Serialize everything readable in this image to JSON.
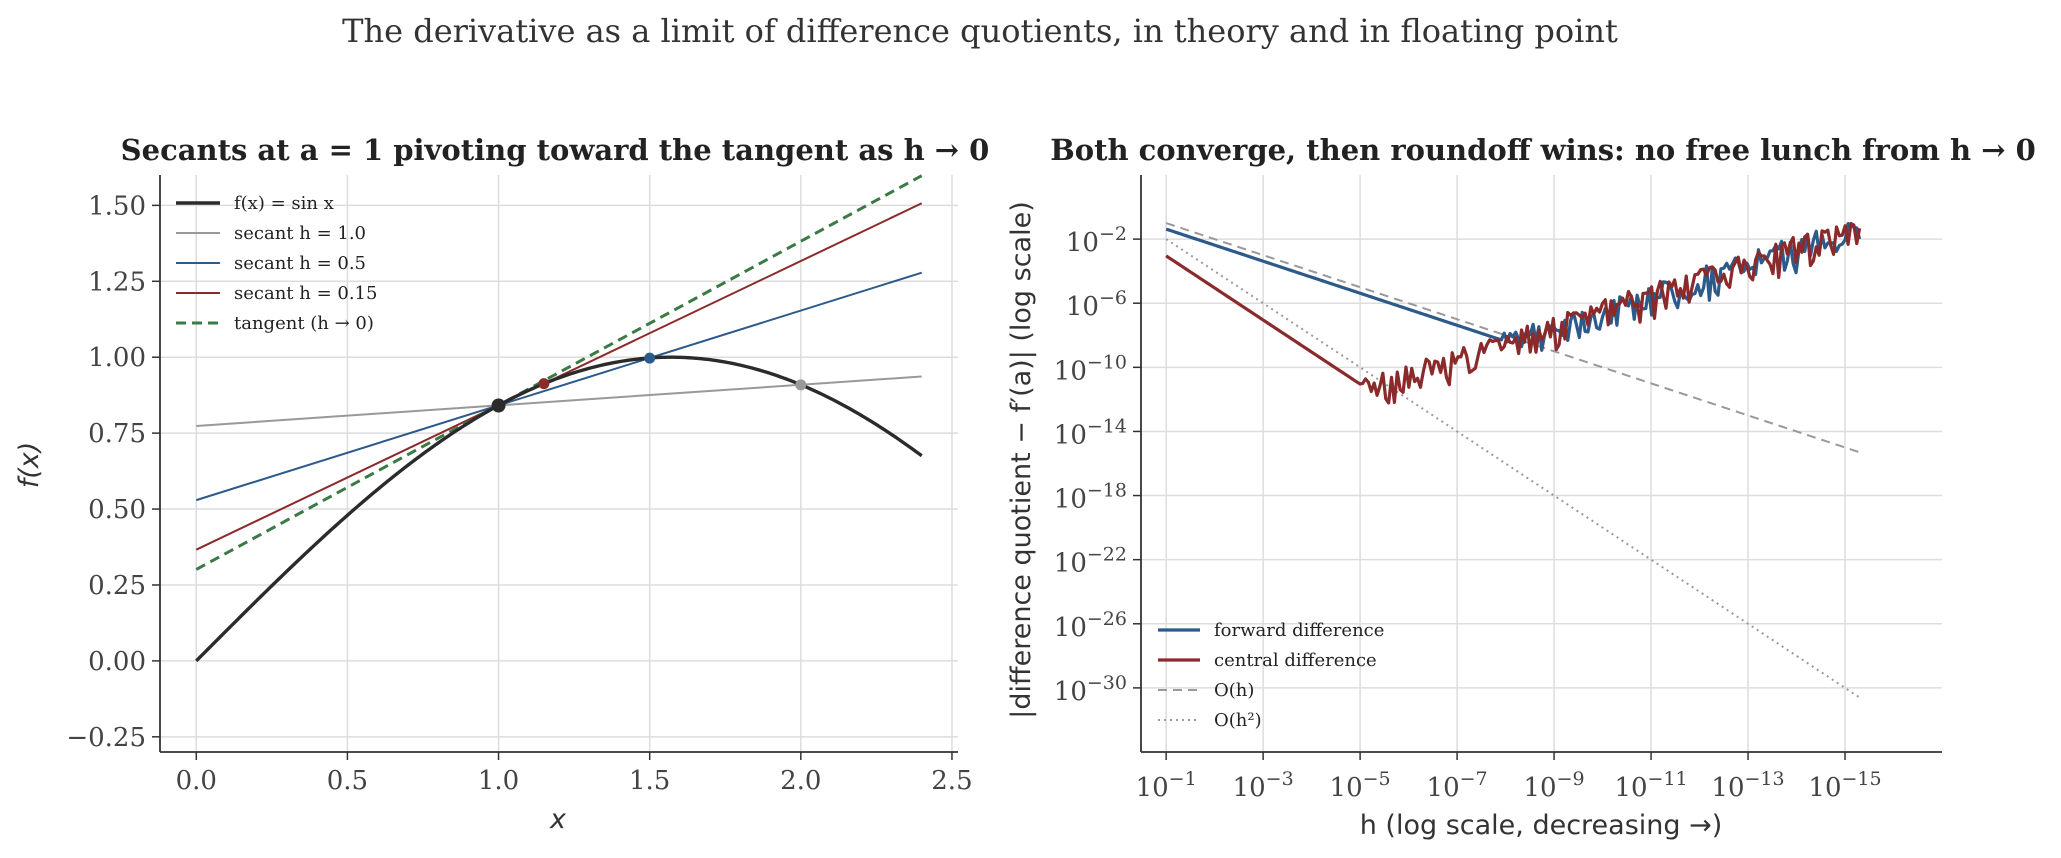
{
  "suptitle": "The derivative as a limit of difference quotients, in theory and in floating point",
  "chart_data": [
    {
      "type": "line",
      "title": "Secants at a = 1 pivoting toward the tangent as h → 0",
      "xlabel": "x",
      "ylabel": "f(x)",
      "xlim": [
        -0.12,
        2.52
      ],
      "ylim": [
        -0.3,
        1.6
      ],
      "xticks": [
        "0.0",
        "0.5",
        "1.0",
        "1.5",
        "2.0",
        "2.5"
      ],
      "yticks": [
        "−0.25",
        "0.00",
        "0.25",
        "0.50",
        "0.75",
        "1.00",
        "1.25",
        "1.50"
      ],
      "grid": true,
      "legend_placement": "upper-left",
      "a": 1.0,
      "x_range": [
        0,
        2.4
      ],
      "series": [
        {
          "name": "f(x) = sin x",
          "kind": "function",
          "color": "#2b2b2b"
        },
        {
          "name": "secant h = 1.0",
          "kind": "secant",
          "h": 1.0,
          "color": "#999999"
        },
        {
          "name": "secant h = 0.5",
          "kind": "secant",
          "h": 0.5,
          "color": "#2c5a8a"
        },
        {
          "name": "secant h = 0.15",
          "kind": "secant",
          "h": 0.15,
          "color": "#8b2a2a"
        },
        {
          "name": "tangent (h → 0)",
          "kind": "tangent",
          "color": "#3a7a45",
          "dashed": true
        }
      ],
      "points": [
        {
          "x": 1.0,
          "y": 0.841,
          "color": "#2b2b2b"
        },
        {
          "x": 1.15,
          "y": 0.913,
          "color": "#8b2a2a"
        },
        {
          "x": 1.5,
          "y": 0.997,
          "color": "#2c5a8a"
        },
        {
          "x": 2.0,
          "y": 0.909,
          "color": "#999999"
        }
      ]
    },
    {
      "type": "line",
      "title": "Both converge, then roundoff wins: no free lunch from h → 0",
      "xlabel": "h (log scale, decreasing →)",
      "ylabel": "|difference quotient − f′(a)| (log scale)",
      "x_scale": "log, inverted",
      "y_scale": "log",
      "xlim": [
        0.33,
        1e-17
      ],
      "ylim": [
        1e-34,
        100.0
      ],
      "xticks": [
        {
          "base": "10",
          "exp": "−1"
        },
        {
          "base": "10",
          "exp": "−3"
        },
        {
          "base": "10",
          "exp": "−5"
        },
        {
          "base": "10",
          "exp": "−7"
        },
        {
          "base": "10",
          "exp": "−9"
        },
        {
          "base": "10",
          "exp": "−11"
        },
        {
          "base": "10",
          "exp": "−13"
        },
        {
          "base": "10",
          "exp": "−15"
        }
      ],
      "yticks": [
        {
          "base": "10",
          "exp": "−2"
        },
        {
          "base": "10",
          "exp": "−6"
        },
        {
          "base": "10",
          "exp": "−10"
        },
        {
          "base": "10",
          "exp": "−14"
        },
        {
          "base": "10",
          "exp": "−18"
        },
        {
          "base": "10",
          "exp": "−22"
        },
        {
          "base": "10",
          "exp": "−26"
        },
        {
          "base": "10",
          "exp": "−30"
        }
      ],
      "grid": true,
      "legend_placement": "lower-left",
      "h_range": [
        0.1,
        5e-16
      ],
      "series": [
        {
          "name": "forward difference",
          "color": "#2c5a8a",
          "truncation_coeff": 0.42,
          "roundoff_coeff": 1.1e-16
        },
        {
          "name": "central difference",
          "color": "#8b2a2a",
          "truncation_coeff": 0.09,
          "roundoff_coeff": 1.1e-16
        },
        {
          "name": "O(h)",
          "color": "#999999",
          "dashed": true,
          "coeff": 1.0,
          "power": 1
        },
        {
          "name": "O(h²)",
          "color": "#999999",
          "dotted": true,
          "coeff": 1.0,
          "power": 2
        }
      ],
      "data_points": {
        "forward_difference": [
          [
            0.1,
            0.042
          ],
          [
            0.001,
            0.00042
          ],
          [
            1e-05,
            4.2e-06
          ],
          [
            1e-07,
            4.2e-08
          ],
          [
            1e-09,
            1.1e-07
          ],
          [
            1e-11,
            1.1e-05
          ],
          [
            1e-13,
            0.0011
          ],
          [
            1e-15,
            0.11
          ]
        ],
        "central_difference": [
          [
            0.1,
            0.0009
          ],
          [
            0.001,
            9e-08
          ],
          [
            1e-05,
            9e-12
          ],
          [
            1e-07,
            1.1e-09
          ],
          [
            1e-09,
            1.1e-07
          ],
          [
            1e-11,
            1.1e-05
          ],
          [
            1e-13,
            0.0011
          ],
          [
            1e-15,
            0.11
          ]
        ]
      }
    }
  ]
}
